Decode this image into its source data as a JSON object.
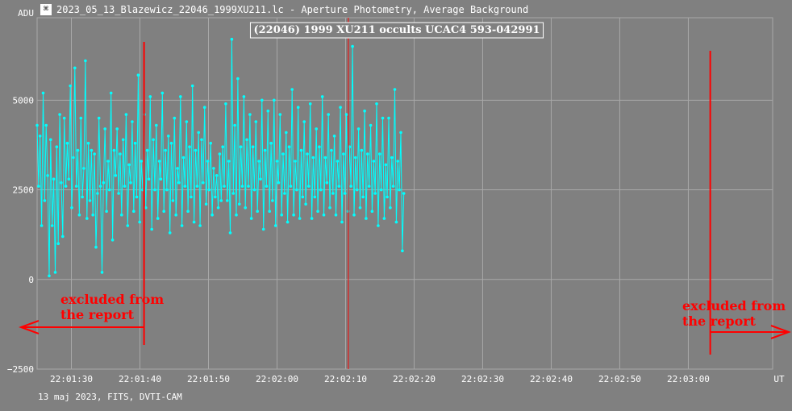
{
  "window": {
    "icon": "lightcurve-app-icon",
    "title": "2023_05_13_Blazewicz_22046_1999XU211.lc - Aperture Photometry, Average Background"
  },
  "footer": {
    "info": "13 maj 2023, FITS, DVTI-CAM"
  },
  "colors": {
    "background": "#808080",
    "grid": "#a8a8a8",
    "series": "#00ffff",
    "annotation": "#ff0000",
    "axis_text": "#ffffff"
  },
  "chart_data": {
    "type": "line",
    "title": "(22046) 1999 XU211 occults UCAC4 593-042991",
    "ylabel": "ADU",
    "xlabel": "UT",
    "ylim": [
      -2500,
      7300
    ],
    "xlim_seconds_after_22_01_20": [
      0,
      53.5
    ],
    "y_ticks": [
      {
        "value": -2500,
        "label": "−2500"
      },
      {
        "value": 0,
        "label": "0"
      },
      {
        "value": 2500,
        "label": "2500"
      },
      {
        "value": 5000,
        "label": "5000"
      }
    ],
    "x_ticks": [
      {
        "t": 5,
        "label": "22:01:30"
      },
      {
        "t": 15,
        "label": "22:01:40"
      },
      {
        "t": 25,
        "label": "22:01:50"
      },
      {
        "t": 35,
        "label": "22:02:00"
      },
      {
        "t": 45,
        "label": "22:02:10"
      },
      {
        "t": 55,
        "label": "22:02:20"
      },
      {
        "t": 65,
        "label": "22:02:30"
      },
      {
        "t": 75,
        "label": "22:02:40"
      },
      {
        "t": 85,
        "label": "22:02:50"
      },
      {
        "t": 95,
        "label": "22:03:00"
      }
    ],
    "x_range_label_seconds": [
      0,
      107.3
    ],
    "series": [
      {
        "color": "#00ffff",
        "values": [
          4300,
          2600,
          4000,
          1500,
          5200,
          2200,
          4300,
          2900,
          100,
          3900,
          1500,
          2800,
          200,
          3700,
          1000,
          4600,
          2700,
          1200,
          4500,
          2600,
          3800,
          2800,
          5400,
          2000,
          3400,
          5900,
          2600,
          3600,
          1800,
          4500,
          2300,
          3100,
          6100,
          1700,
          3800,
          2200,
          3600,
          1800,
          3500,
          900,
          2400,
          4500,
          2600,
          200,
          2700,
          4200,
          1900,
          3300,
          2500,
          5200,
          1100,
          3600,
          2900,
          4200,
          2400,
          3500,
          1800,
          3900,
          2600,
          4600,
          1500,
          3200,
          2700,
          4400,
          1900,
          3800,
          2300,
          5700,
          1600,
          3300,
          2500,
          4600,
          2000,
          3600,
          2800,
          5100,
          1400,
          3900,
          2500,
          4300,
          1700,
          3300,
          2800,
          5200,
          1900,
          3600,
          2500,
          4000,
          1300,
          3800,
          2200,
          4500,
          1800,
          3100,
          2700,
          5100,
          1500,
          3400,
          2600,
          4400,
          1900,
          3700,
          2300,
          5400,
          1600,
          3600,
          2600,
          4100,
          1500,
          3900,
          2700,
          4800,
          2100,
          3300,
          2500,
          3800,
          1800,
          3100,
          2300,
          2900,
          2000,
          3500,
          2200,
          3700,
          2600,
          4900,
          2200,
          3300,
          1300,
          6700,
          2400,
          4300,
          1800,
          5600,
          2100,
          3700,
          2600,
          5100,
          2000,
          3900,
          2600,
          4600,
          1700,
          3700,
          2500,
          4400,
          1900,
          3300,
          2800,
          5000,
          1400,
          3600,
          2600,
          4700,
          1900,
          3800,
          2200,
          5000,
          1500,
          3300,
          2700,
          4600,
          1800,
          3500,
          2400,
          4100,
          1600,
          3700,
          2600,
          5300,
          1800,
          3300,
          2500,
          4800,
          1700,
          3600,
          2300,
          4400,
          2100,
          3500,
          2600,
          4900,
          1700,
          3400,
          2300,
          4200,
          1900,
          3700,
          2500,
          5100,
          1800,
          3400,
          2700,
          4600,
          2000,
          3600,
          2400,
          4000,
          1800,
          3300,
          2600,
          4800,
          1600,
          3500,
          2400,
          4600,
          1900,
          3700,
          2600,
          6500,
          1800,
          3400,
          2500,
          4200,
          2000,
          3600,
          2300,
          4700,
          1700,
          3500,
          2600,
          4300,
          1900,
          3300,
          2400,
          4900,
          1500,
          3500,
          2500,
          4500,
          1700,
          3200,
          2300,
          4500,
          2000,
          3400,
          2600,
          5300,
          1600,
          3300,
          2500,
          4100,
          800,
          2400
        ]
      }
    ],
    "annotations": [
      {
        "label": "excluded from\nthe report",
        "t_boundary": 15.6,
        "direction": "left"
      },
      {
        "label": "excluded from\nthe report",
        "t_boundary": 98.2,
        "direction": "right"
      }
    ],
    "event_marker_t": 45.4
  }
}
